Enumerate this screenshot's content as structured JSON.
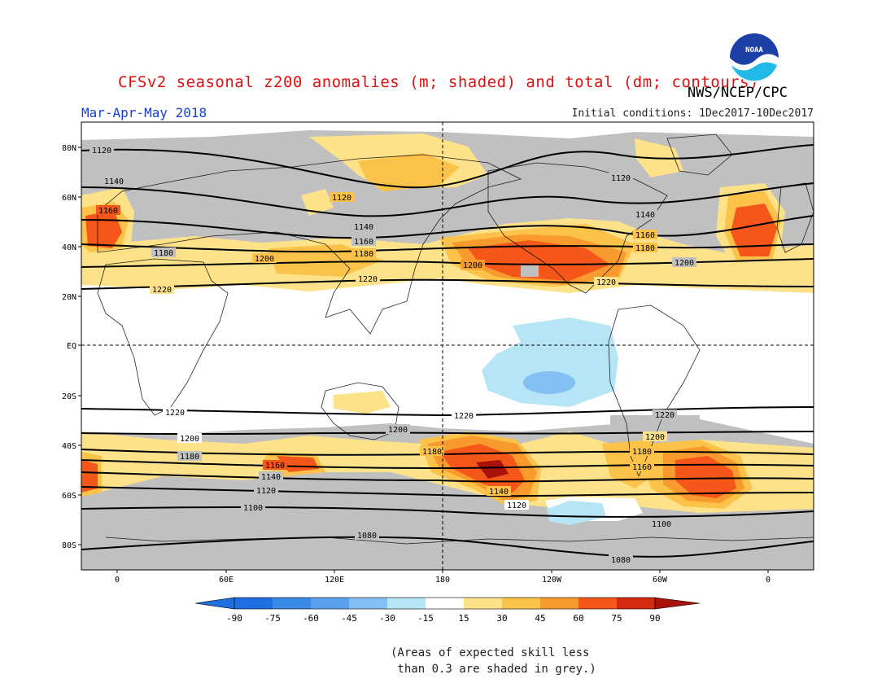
{
  "header": {
    "title": "CFSv2 seasonal z200 anomalies (m; shaded) and total (dm; contours)",
    "season": "Mar-Apr-May 2018",
    "initial_conditions": "Initial conditions: 1Dec2017-10Dec2017",
    "agency": "NWS/NCEP/CPC",
    "logo_text": "NOAA"
  },
  "map": {
    "lat_labels": [
      "80N",
      "60N",
      "40N",
      "20N",
      "EQ",
      "20S",
      "40S",
      "60S",
      "80S"
    ],
    "lon_labels": [
      "0",
      "60E",
      "120E",
      "180",
      "120W",
      "60W",
      "0"
    ],
    "contour_levels_dm": [
      1080,
      1100,
      1120,
      1140,
      1160,
      1180,
      1200,
      1220
    ],
    "contour_labels": {
      "n1120": "1120",
      "n1140": "1140",
      "n1160": "1160",
      "n1180": "1180",
      "n1200": "1200",
      "n1220": "1220",
      "s1220": "1220",
      "s1200": "1200",
      "s1180": "1180",
      "s1160": "1160",
      "s1140": "1140",
      "s1120": "1120",
      "s1100": "1100",
      "s1080": "1080"
    }
  },
  "colorbar": {
    "labels": [
      "-90",
      "-75",
      "-60",
      "-45",
      "-30",
      "-15",
      "15",
      "30",
      "45",
      "60",
      "75",
      "90"
    ],
    "colors": [
      "#1f6fe0",
      "#3a8ae8",
      "#5aa0ee",
      "#84bff3",
      "#b6e6f6",
      "#ffffff",
      "#fde28a",
      "#fcc24a",
      "#f89a2e",
      "#f5561a",
      "#d42a10",
      "#a81208"
    ]
  },
  "colors": {
    "grey_skill_mask": "#c0c0c0",
    "title_red": "#e01010",
    "season_blue": "#1a3fd8"
  },
  "footnote": "(Areas of expected skill less\n than 0.3 are shaded in grey.)"
}
